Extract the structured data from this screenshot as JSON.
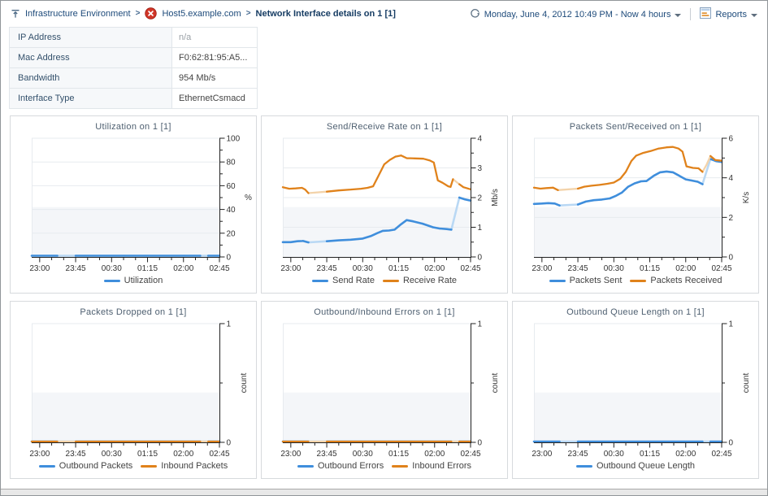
{
  "colors": {
    "blue": "#3f8edc",
    "blue_pale": "#b9d8f4",
    "orange": "#e0821b",
    "orange_pale": "#f3d3aa",
    "band": "#f4f6f9",
    "grid": "#e7ebef",
    "axis": "#222222",
    "navy": "#1d4a7a",
    "title": "#4f6071"
  },
  "header": {
    "breadcrumb": [
      {
        "label": "Infrastructure Environment"
      },
      {
        "label": "Host5.example.com"
      },
      {
        "label": "Network Interface details on 1 [1]"
      }
    ],
    "separator": ">",
    "time_range": "Monday, June 4, 2012 10:49 PM - Now 4 hours",
    "reports_label": "Reports",
    "icons": {
      "up": "up-arrow-icon",
      "error": "error-status-icon",
      "time": "time-range-icon",
      "reports": "reports-icon",
      "caret": "caret-down-icon"
    }
  },
  "info_table": {
    "rows": [
      {
        "label": "IP Address",
        "value": "n/a",
        "muted": true
      },
      {
        "label": "Mac Address",
        "value": "F0:62:81:95:A5...",
        "muted": false
      },
      {
        "label": "Bandwidth",
        "value": "954 Mb/s",
        "muted": false
      },
      {
        "label": "Interface Type",
        "value": "EthernetCsmacd",
        "muted": false
      }
    ]
  },
  "time_axis": {
    "domain_minutes": [
      0,
      235
    ],
    "tick_minutes": [
      10,
      55,
      100,
      145,
      190,
      235
    ],
    "minor_minutes": [
      25,
      40,
      70,
      85,
      115,
      130,
      160,
      175,
      205,
      220
    ]
  },
  "chart_data": [
    {
      "type": "line",
      "title": "Utilization on 1 [1]",
      "ylabel": "%",
      "ylabel_rotated": false,
      "ylim": [
        0,
        100
      ],
      "yticks_major": [
        0,
        20,
        40,
        60,
        80,
        100
      ],
      "yticks_minor": [
        10,
        30,
        50,
        70,
        90
      ],
      "x_labels": [
        "23:00",
        "23:45",
        "00:30",
        "01:15",
        "02:00",
        "02:45"
      ],
      "gaps_minutes": [
        [
          33,
          54
        ],
        [
          212,
          220
        ]
      ],
      "series": [
        {
          "name": "Utilization",
          "color": "blue",
          "points": [
            [
              0,
              1
            ],
            [
              32,
              1
            ],
            [
              55,
              1
            ],
            [
              211,
              1
            ],
            [
              221,
              1
            ],
            [
              235,
              1
            ]
          ]
        }
      ]
    },
    {
      "type": "line",
      "title": "Send/Receive Rate on 1 [1]",
      "ylabel": "Mb/s",
      "ylabel_rotated": true,
      "ylim": [
        0,
        4
      ],
      "yticks_major": [
        0,
        1,
        2,
        3,
        4
      ],
      "yticks_minor": [
        0.5,
        1.5,
        2.5,
        3.5
      ],
      "x_labels": [
        "23:00",
        "23:45",
        "00:30",
        "01:15",
        "02:00",
        "02:45"
      ],
      "gaps_minutes": [
        [
          33,
          54
        ],
        [
          214,
          220
        ]
      ],
      "series": [
        {
          "name": "Send Rate",
          "color": "blue",
          "points": [
            [
              0,
              0.5
            ],
            [
              10,
              0.5
            ],
            [
              18,
              0.53
            ],
            [
              25,
              0.54
            ],
            [
              32,
              0.49
            ],
            [
              55,
              0.53
            ],
            [
              70,
              0.56
            ],
            [
              85,
              0.58
            ],
            [
              100,
              0.62
            ],
            [
              110,
              0.7
            ],
            [
              118,
              0.8
            ],
            [
              125,
              0.88
            ],
            [
              133,
              0.89
            ],
            [
              140,
              0.92
            ],
            [
              148,
              1.1
            ],
            [
              155,
              1.24
            ],
            [
              163,
              1.2
            ],
            [
              175,
              1.12
            ],
            [
              188,
              1.0
            ],
            [
              196,
              0.96
            ],
            [
              205,
              0.94
            ],
            [
              211,
              0.92
            ],
            [
              221,
              2.0
            ],
            [
              228,
              1.94
            ],
            [
              235,
              1.9
            ]
          ]
        },
        {
          "name": "Receive Rate",
          "color": "orange",
          "points": [
            [
              0,
              2.35
            ],
            [
              8,
              2.3
            ],
            [
              16,
              2.31
            ],
            [
              24,
              2.33
            ],
            [
              28,
              2.27
            ],
            [
              32,
              2.15
            ],
            [
              55,
              2.2
            ],
            [
              70,
              2.24
            ],
            [
              85,
              2.27
            ],
            [
              98,
              2.3
            ],
            [
              106,
              2.33
            ],
            [
              113,
              2.38
            ],
            [
              120,
              2.75
            ],
            [
              127,
              3.12
            ],
            [
              134,
              3.27
            ],
            [
              141,
              3.38
            ],
            [
              148,
              3.42
            ],
            [
              155,
              3.33
            ],
            [
              165,
              3.32
            ],
            [
              176,
              3.31
            ],
            [
              184,
              3.25
            ],
            [
              189,
              3.18
            ],
            [
              194,
              2.58
            ],
            [
              200,
              2.5
            ],
            [
              207,
              2.38
            ],
            [
              210,
              2.36
            ],
            [
              213,
              2.62
            ],
            [
              221,
              2.45
            ],
            [
              226,
              2.35
            ],
            [
              235,
              2.28
            ]
          ]
        }
      ]
    },
    {
      "type": "line",
      "title": "Packets Sent/Received on 1 [1]",
      "ylabel": "K/s",
      "ylabel_rotated": true,
      "ylim": [
        0,
        6
      ],
      "yticks_major": [
        0,
        2,
        4,
        6
      ],
      "yticks_minor": [
        1,
        3,
        5
      ],
      "x_labels": [
        "23:00",
        "23:45",
        "00:30",
        "01:15",
        "02:00",
        "02:45"
      ],
      "gaps_minutes": [
        [
          31,
          54
        ],
        [
          212,
          220
        ]
      ],
      "series": [
        {
          "name": "Packets Sent",
          "color": "blue",
          "points": [
            [
              0,
              2.68
            ],
            [
              10,
              2.7
            ],
            [
              18,
              2.72
            ],
            [
              26,
              2.7
            ],
            [
              32,
              2.6
            ],
            [
              55,
              2.65
            ],
            [
              65,
              2.8
            ],
            [
              75,
              2.87
            ],
            [
              85,
              2.9
            ],
            [
              95,
              2.96
            ],
            [
              102,
              3.08
            ],
            [
              110,
              3.25
            ],
            [
              118,
              3.55
            ],
            [
              126,
              3.72
            ],
            [
              134,
              3.82
            ],
            [
              141,
              3.84
            ],
            [
              150,
              4.1
            ],
            [
              158,
              4.28
            ],
            [
              166,
              4.32
            ],
            [
              174,
              4.28
            ],
            [
              182,
              4.1
            ],
            [
              190,
              3.92
            ],
            [
              198,
              3.86
            ],
            [
              205,
              3.8
            ],
            [
              211,
              3.68
            ],
            [
              221,
              4.95
            ],
            [
              228,
              4.84
            ],
            [
              235,
              4.8
            ]
          ]
        },
        {
          "name": "Packets Received",
          "color": "orange",
          "points": [
            [
              0,
              3.5
            ],
            [
              8,
              3.45
            ],
            [
              16,
              3.48
            ],
            [
              24,
              3.5
            ],
            [
              30,
              3.38
            ],
            [
              55,
              3.45
            ],
            [
              63,
              3.55
            ],
            [
              72,
              3.6
            ],
            [
              82,
              3.64
            ],
            [
              92,
              3.7
            ],
            [
              100,
              3.76
            ],
            [
              108,
              3.95
            ],
            [
              115,
              4.3
            ],
            [
              122,
              4.85
            ],
            [
              128,
              5.12
            ],
            [
              136,
              5.25
            ],
            [
              146,
              5.35
            ],
            [
              156,
              5.48
            ],
            [
              166,
              5.54
            ],
            [
              174,
              5.56
            ],
            [
              181,
              5.48
            ],
            [
              186,
              5.32
            ],
            [
              191,
              4.58
            ],
            [
              199,
              4.5
            ],
            [
              206,
              4.48
            ],
            [
              211,
              4.3
            ],
            [
              216,
              4.65
            ],
            [
              221,
              5.1
            ],
            [
              227,
              4.9
            ],
            [
              235,
              4.86
            ]
          ]
        }
      ]
    },
    {
      "type": "line",
      "title": "Packets Dropped on 1 [1]",
      "ylabel": "count",
      "ylabel_rotated": true,
      "ylim": [
        0,
        1
      ],
      "yticks_major": [
        0,
        1
      ],
      "yticks_minor": [
        0.5
      ],
      "x_labels": [
        "23:00",
        "23:45",
        "00:30",
        "01:15",
        "02:00",
        "02:45"
      ],
      "gaps_minutes": [
        [
          33,
          54
        ],
        [
          212,
          220
        ]
      ],
      "series": [
        {
          "name": "Outbound Packets",
          "color": "blue",
          "points": [
            [
              0,
              0
            ],
            [
              32,
              0
            ],
            [
              55,
              0
            ],
            [
              211,
              0
            ],
            [
              221,
              0
            ],
            [
              235,
              0
            ]
          ]
        },
        {
          "name": "Inbound Packets",
          "color": "orange",
          "points": [
            [
              0,
              0
            ],
            [
              32,
              0
            ],
            [
              55,
              0
            ],
            [
              211,
              0
            ],
            [
              221,
              0
            ],
            [
              235,
              0
            ]
          ]
        }
      ]
    },
    {
      "type": "line",
      "title": "Outbound/Inbound Errors on 1 [1]",
      "ylabel": "count",
      "ylabel_rotated": true,
      "ylim": [
        0,
        1
      ],
      "yticks_major": [
        0,
        1
      ],
      "yticks_minor": [
        0.5
      ],
      "x_labels": [
        "23:00",
        "23:45",
        "00:30",
        "01:15",
        "02:00",
        "02:45"
      ],
      "gaps_minutes": [
        [
          33,
          54
        ],
        [
          212,
          220
        ]
      ],
      "series": [
        {
          "name": "Outbound Errors",
          "color": "blue",
          "points": [
            [
              0,
              0
            ],
            [
              32,
              0
            ],
            [
              55,
              0
            ],
            [
              211,
              0
            ],
            [
              221,
              0
            ],
            [
              235,
              0
            ]
          ]
        },
        {
          "name": "Inbound Errors",
          "color": "orange",
          "points": [
            [
              0,
              0
            ],
            [
              32,
              0
            ],
            [
              55,
              0
            ],
            [
              211,
              0
            ],
            [
              221,
              0
            ],
            [
              235,
              0
            ]
          ]
        }
      ]
    },
    {
      "type": "line",
      "title": "Outbound Queue Length on 1 [1]",
      "ylabel": "count",
      "ylabel_rotated": true,
      "ylim": [
        0,
        1
      ],
      "yticks_major": [
        0,
        1
      ],
      "yticks_minor": [
        0.5
      ],
      "x_labels": [
        "23:00",
        "23:45",
        "00:30",
        "01:15",
        "02:00",
        "02:45"
      ],
      "gaps_minutes": [
        [
          33,
          54
        ],
        [
          212,
          220
        ]
      ],
      "series": [
        {
          "name": "Outbound Queue Length",
          "color": "blue",
          "points": [
            [
              0,
              0
            ],
            [
              32,
              0
            ],
            [
              55,
              0
            ],
            [
              211,
              0
            ],
            [
              221,
              0
            ],
            [
              235,
              0
            ]
          ]
        }
      ]
    }
  ]
}
